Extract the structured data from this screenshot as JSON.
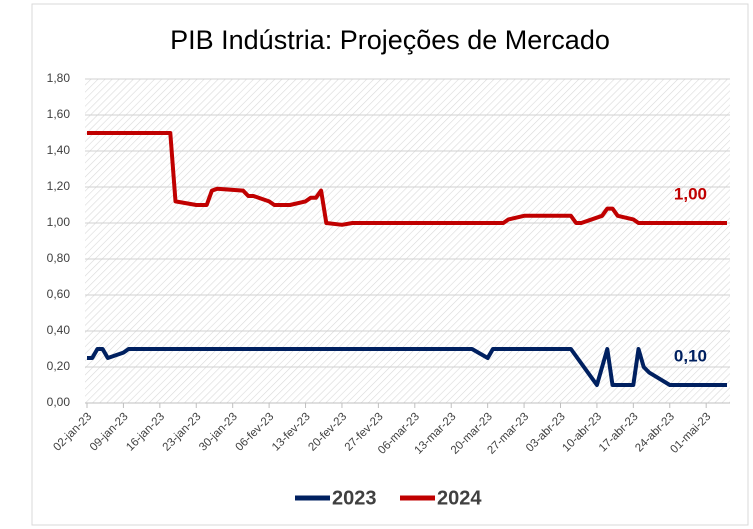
{
  "chart_data": {
    "type": "line",
    "title": "PIB Indústria: Projeções de Mercado",
    "xlim": [
      "2023-01-02",
      "2023-05-05"
    ],
    "xticks": [
      {
        "value": "2023-01-02",
        "label": "02-jan-23"
      },
      {
        "value": "2023-01-09",
        "label": "09-jan-23"
      },
      {
        "value": "2023-01-16",
        "label": "16-jan-23"
      },
      {
        "value": "2023-01-23",
        "label": "23-jan-23"
      },
      {
        "value": "2023-01-30",
        "label": "30-jan-23"
      },
      {
        "value": "2023-02-06",
        "label": "06-fev-23"
      },
      {
        "value": "2023-02-13",
        "label": "13-fev-23"
      },
      {
        "value": "2023-02-20",
        "label": "20-fev-23"
      },
      {
        "value": "2023-02-27",
        "label": "27-fev-23"
      },
      {
        "value": "2023-03-06",
        "label": "06-mar-23"
      },
      {
        "value": "2023-03-13",
        "label": "13-mar-23"
      },
      {
        "value": "2023-03-20",
        "label": "20-mar-23"
      },
      {
        "value": "2023-03-27",
        "label": "27-mar-23"
      },
      {
        "value": "2023-04-03",
        "label": "03-abr-23"
      },
      {
        "value": "2023-04-10",
        "label": "10-abr-23"
      },
      {
        "value": "2023-04-17",
        "label": "17-abr-23"
      },
      {
        "value": "2023-04-24",
        "label": "24-abr-23"
      },
      {
        "value": "2023-05-01",
        "label": "01-mai-23"
      }
    ],
    "ylim": [
      0,
      1.8
    ],
    "yticks": [
      {
        "value": 0,
        "label": "0,00"
      },
      {
        "value": 0.2,
        "label": "0,20"
      },
      {
        "value": 0.4,
        "label": "0,40"
      },
      {
        "value": 0.6,
        "label": "0,60"
      },
      {
        "value": 0.8,
        "label": "0,80"
      },
      {
        "value": 1.0,
        "label": "1,00"
      },
      {
        "value": 1.2,
        "label": "1,20"
      },
      {
        "value": 1.4,
        "label": "1,40"
      },
      {
        "value": 1.6,
        "label": "1,60"
      },
      {
        "value": 1.8,
        "label": "1,80"
      }
    ],
    "grid": true,
    "legend": "bottom",
    "series": [
      {
        "name": "2023",
        "color": "#002060",
        "last_value_label": "0,10",
        "x": [
          "2023-01-02",
          "2023-01-03",
          "2023-01-04",
          "2023-01-05",
          "2023-01-06",
          "2023-01-09",
          "2023-01-10",
          "2023-03-17",
          "2023-03-20",
          "2023-03-21",
          "2023-04-05",
          "2023-04-10",
          "2023-04-11",
          "2023-04-12",
          "2023-04-13",
          "2023-04-17",
          "2023-04-18",
          "2023-04-19",
          "2023-04-20",
          "2023-04-24",
          "2023-05-05"
        ],
        "values": [
          0.25,
          0.25,
          0.3,
          0.3,
          0.25,
          0.28,
          0.3,
          0.3,
          0.25,
          0.3,
          0.3,
          0.1,
          0.2,
          0.3,
          0.1,
          0.1,
          0.3,
          0.2,
          0.17,
          0.1,
          0.1
        ]
      },
      {
        "name": "2024",
        "color": "#c00000",
        "last_value_label": "1,00",
        "x": [
          "2023-01-02",
          "2023-01-18",
          "2023-01-19",
          "2023-01-23",
          "2023-01-25",
          "2023-01-26",
          "2023-01-27",
          "2023-02-01",
          "2023-02-02",
          "2023-02-03",
          "2023-02-06",
          "2023-02-07",
          "2023-02-10",
          "2023-02-13",
          "2023-02-14",
          "2023-02-15",
          "2023-02-16",
          "2023-02-17",
          "2023-02-20",
          "2023-02-22",
          "2023-03-23",
          "2023-03-24",
          "2023-03-27",
          "2023-04-05",
          "2023-04-06",
          "2023-04-07",
          "2023-04-11",
          "2023-04-12",
          "2023-04-13",
          "2023-04-14",
          "2023-04-17",
          "2023-04-18",
          "2023-05-05"
        ],
        "values": [
          1.5,
          1.5,
          1.12,
          1.1,
          1.1,
          1.18,
          1.19,
          1.18,
          1.15,
          1.15,
          1.12,
          1.1,
          1.1,
          1.12,
          1.14,
          1.14,
          1.18,
          1.0,
          0.99,
          1.0,
          1.0,
          1.02,
          1.04,
          1.04,
          1.0,
          1.0,
          1.04,
          1.08,
          1.08,
          1.04,
          1.02,
          1.0,
          1.0
        ]
      }
    ]
  }
}
